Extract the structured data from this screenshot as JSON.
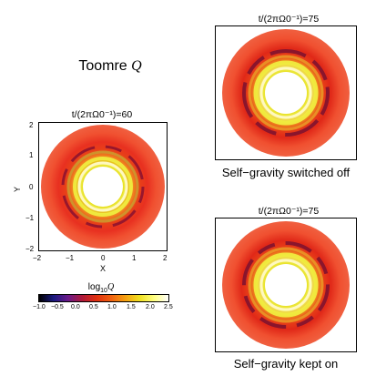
{
  "figure": {
    "main_title_prefix": "Toomre ",
    "main_title_symbol": "Q",
    "panels": {
      "left": {
        "time_label": "t/(2πΩ0⁻¹)=60",
        "x_axis_label": "X",
        "y_axis_label": "Y",
        "x_ticks": [
          "−2",
          "−1",
          "0",
          "1",
          "2"
        ],
        "y_ticks": [
          "2",
          "1",
          "0",
          "−1",
          "−2"
        ]
      },
      "top_right": {
        "time_label": "t/(2πΩ0⁻¹)=75",
        "caption": "Self−gravity switched off"
      },
      "bottom_right": {
        "time_label": "t/(2πΩ0⁻¹)=75",
        "caption": "Self−gravity kept on"
      }
    },
    "colorbar": {
      "title_prefix": "log",
      "title_sub": "10",
      "title_symbol": "Q",
      "ticks": [
        "−1.0",
        "−0.5",
        "0.0",
        "0.5",
        "1.0",
        "1.5",
        "2.0",
        "2.5"
      ],
      "colors": [
        "#000000",
        "#1a1a80",
        "#6a1a8a",
        "#b01a3a",
        "#e03010",
        "#f06010",
        "#f5a010",
        "#f0e020",
        "#ffff80",
        "#ffffff"
      ]
    }
  }
}
